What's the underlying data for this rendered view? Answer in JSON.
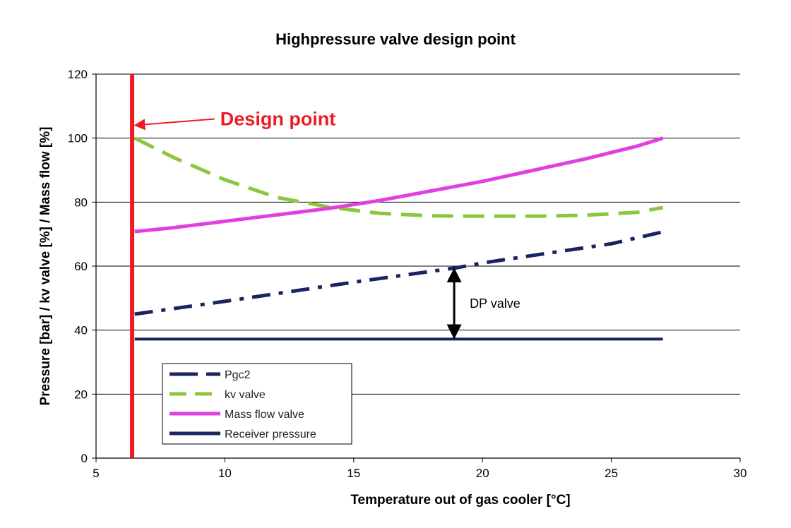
{
  "chart_data": {
    "type": "line",
    "title": "Highpressure valve design point",
    "xlabel": "Temperature out of gas cooler [°C]",
    "ylabel": "Pressure [bar] / kv valve [%] / Mass flow [%]",
    "xlim": [
      5,
      30
    ],
    "ylim": [
      0,
      120
    ],
    "xticks": [
      5,
      10,
      15,
      20,
      25,
      30
    ],
    "yticks": [
      0,
      20,
      40,
      60,
      80,
      100,
      120
    ],
    "grid": "horizontal",
    "legend_position": "bottom-left",
    "series": [
      {
        "name": "Pgc2",
        "color": "#1a2560",
        "style": "dash-dot",
        "points": [
          [
            6.5,
            45
          ],
          [
            10,
            49
          ],
          [
            15,
            55
          ],
          [
            19,
            59.5
          ],
          [
            20,
            61
          ],
          [
            25,
            67
          ],
          [
            27,
            70.7
          ]
        ]
      },
      {
        "name": "kv valve",
        "color": "#8cc63f",
        "style": "dashed",
        "points": [
          [
            6.5,
            100
          ],
          [
            8,
            94
          ],
          [
            10,
            87
          ],
          [
            12,
            81.5
          ],
          [
            14,
            78.5
          ],
          [
            16,
            76.5
          ],
          [
            18,
            75.7
          ],
          [
            20,
            75.6
          ],
          [
            22,
            75.6
          ],
          [
            24,
            75.9
          ],
          [
            26,
            76.8
          ],
          [
            27,
            78.3
          ]
        ]
      },
      {
        "name": "Mass flow valve",
        "color": "#e040e0",
        "style": "solid",
        "points": [
          [
            6.5,
            70.8
          ],
          [
            8,
            72
          ],
          [
            10,
            74
          ],
          [
            12,
            76
          ],
          [
            14,
            78
          ],
          [
            16,
            80.5
          ],
          [
            18,
            83.5
          ],
          [
            20,
            86.5
          ],
          [
            22,
            90
          ],
          [
            24,
            93.5
          ],
          [
            26,
            97.5
          ],
          [
            27,
            100
          ]
        ]
      },
      {
        "name": "Receiver pressure",
        "color": "#1a2560",
        "style": "solid",
        "points": [
          [
            6.5,
            37.2
          ],
          [
            27,
            37.2
          ]
        ]
      }
    ],
    "design_point": {
      "x": 6.4,
      "color": "#ec1c24"
    },
    "annotations": {
      "design_point_label": "Design point",
      "design_point_arrow": {
        "from": [
          9.6,
          106
        ],
        "to": [
          6.4,
          104
        ]
      },
      "dp_valve_label": "DP valve",
      "dp_valve_arrow": {
        "x": 18.9,
        "y_top": 59.5,
        "y_bottom": 37.2
      }
    }
  }
}
